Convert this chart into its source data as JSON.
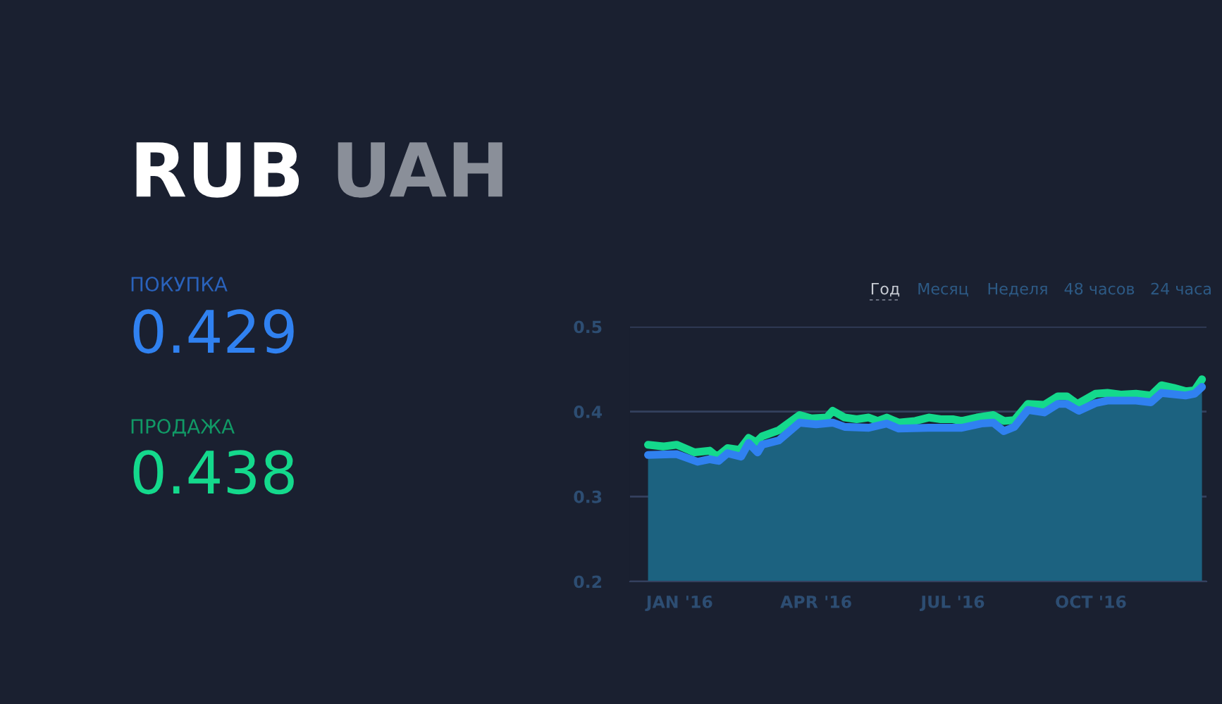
{
  "chart_data": {
    "type": "line",
    "annotations": [
      "RUB",
      "UAH",
      "ПОКУПКА",
      "0.429",
      "ПРОДАЖА",
      "0.438",
      "Год",
      "Месяц",
      "Неделя",
      "48 часов",
      "24 часа"
    ],
    "xlim": [
      "2015-11-29",
      "2016-12-17"
    ],
    "xticks": [
      {
        "value": "2016-01-01",
        "label": "JAN '16"
      },
      {
        "value": "2016-04-01",
        "label": "APR '16"
      },
      {
        "value": "2016-07-01",
        "label": "JUL '16"
      },
      {
        "value": "2016-10-01",
        "label": "OCT '16"
      }
    ],
    "ylim": [
      0.2,
      0.5
    ],
    "yticks": [
      0.2,
      0.3,
      0.4,
      0.5
    ],
    "grid": "y",
    "legend": false,
    "series": [
      {
        "type": "area",
        "color": "#3081f0",
        "x": [
          "2015-12-11",
          "2015-12-30",
          "2016-01-13",
          "2016-01-21",
          "2016-01-27",
          "2016-02-02",
          "2016-02-11",
          "2016-02-16",
          "2016-02-22",
          "2016-02-25",
          "2016-03-07",
          "2016-03-21",
          "2016-04-01",
          "2016-04-12",
          "2016-04-20",
          "2016-05-06",
          "2016-05-18",
          "2016-05-26",
          "2016-06-15",
          "2016-07-07",
          "2016-07-20",
          "2016-07-28",
          "2016-08-04",
          "2016-08-11",
          "2016-08-20",
          "2016-08-31",
          "2016-09-09",
          "2016-09-15",
          "2016-09-23",
          "2016-10-04",
          "2016-10-12",
          "2016-10-31",
          "2016-11-10",
          "2016-11-17",
          "2016-12-03",
          "2016-12-09",
          "2016-12-14"
        ],
        "values": [
          0.349,
          0.35,
          0.341,
          0.344,
          0.342,
          0.351,
          0.347,
          0.363,
          0.352,
          0.361,
          0.366,
          0.387,
          0.385,
          0.387,
          0.382,
          0.381,
          0.386,
          0.38,
          0.381,
          0.381,
          0.386,
          0.387,
          0.377,
          0.382,
          0.402,
          0.399,
          0.409,
          0.409,
          0.401,
          0.41,
          0.413,
          0.413,
          0.411,
          0.422,
          0.419,
          0.421,
          0.429
        ]
      },
      {
        "color": "#14d98c",
        "x": [
          "2015-12-11",
          "2015-12-21",
          "2015-12-30",
          "2016-01-11",
          "2016-01-21",
          "2016-01-26",
          "2016-02-02",
          "2016-02-10",
          "2016-02-16",
          "2016-02-21",
          "2016-02-25",
          "2016-03-07",
          "2016-03-21",
          "2016-03-29",
          "2016-04-08",
          "2016-04-12",
          "2016-04-20",
          "2016-04-28",
          "2016-05-06",
          "2016-05-12",
          "2016-05-18",
          "2016-05-26",
          "2016-06-06",
          "2016-06-15",
          "2016-06-23",
          "2016-07-01",
          "2016-07-07",
          "2016-07-17",
          "2016-07-28",
          "2016-08-04",
          "2016-08-11",
          "2016-08-20",
          "2016-08-31",
          "2016-09-09",
          "2016-09-15",
          "2016-09-22",
          "2016-10-04",
          "2016-10-12",
          "2016-10-21",
          "2016-10-31",
          "2016-11-10",
          "2016-11-17",
          "2016-11-25",
          "2016-12-03",
          "2016-12-09",
          "2016-12-14"
        ],
        "values": [
          0.361,
          0.359,
          0.361,
          0.352,
          0.354,
          0.347,
          0.357,
          0.355,
          0.369,
          0.364,
          0.371,
          0.378,
          0.396,
          0.392,
          0.393,
          0.401,
          0.393,
          0.391,
          0.393,
          0.389,
          0.393,
          0.387,
          0.389,
          0.393,
          0.391,
          0.391,
          0.389,
          0.393,
          0.396,
          0.389,
          0.39,
          0.409,
          0.408,
          0.418,
          0.418,
          0.409,
          0.421,
          0.422,
          0.42,
          0.421,
          0.419,
          0.431,
          0.428,
          0.424,
          0.425,
          0.438
        ]
      }
    ]
  }
}
